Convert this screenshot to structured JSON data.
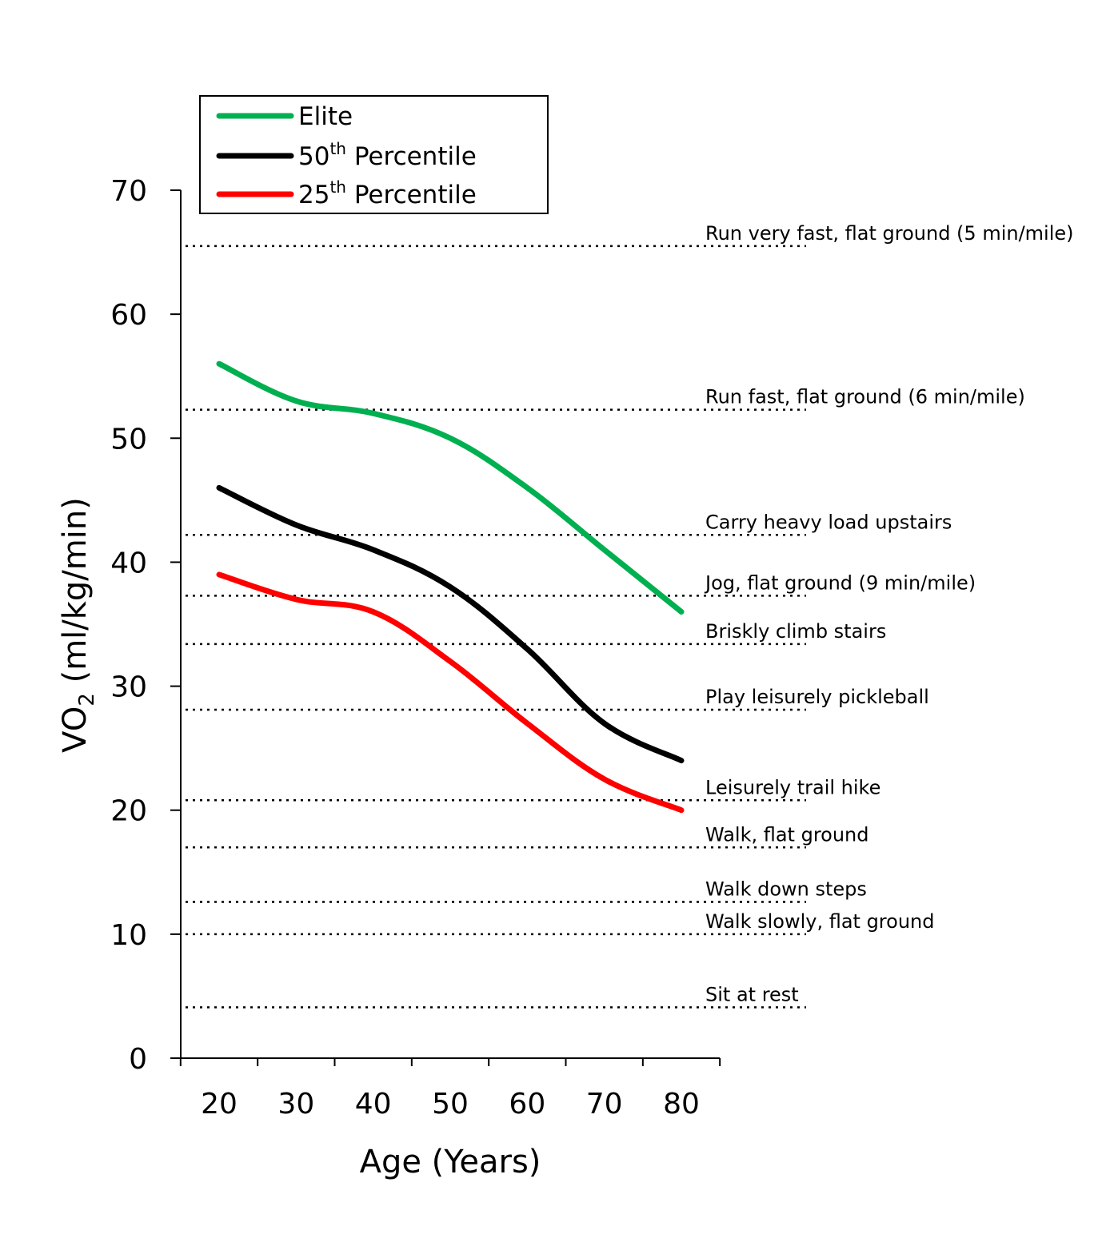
{
  "chart_data": {
    "type": "line",
    "xlabel": "Age (Years)",
    "ylabel_main": "VO",
    "ylabel_sub": "2",
    "ylabel_rest": " (ml/kg/min)",
    "x": [
      20,
      30,
      40,
      50,
      60,
      70,
      80
    ],
    "xticks": [
      "20",
      "30",
      "40",
      "50",
      "60",
      "70",
      "80"
    ],
    "xlim": [
      15,
      85
    ],
    "ylim": [
      0,
      70
    ],
    "yticks": [
      "0",
      "10",
      "20",
      "30",
      "40",
      "50",
      "60",
      "70"
    ],
    "grid": false,
    "legend_position": "top-left",
    "series": [
      {
        "name": "Elite",
        "legend_main": "Elite",
        "legend_sup": "",
        "legend_rest": "",
        "color": "#00b050",
        "values": [
          56,
          53,
          52,
          50,
          46,
          41,
          36
        ]
      },
      {
        "name": "50th Percentile",
        "legend_main": "50",
        "legend_sup": "th",
        "legend_rest": " Percentile",
        "color": "#000000",
        "values": [
          46,
          43,
          41,
          38,
          33,
          27,
          24
        ]
      },
      {
        "name": "25th Percentile",
        "legend_main": "25",
        "legend_sup": "th",
        "legend_rest": " Percentile",
        "color": "#ff0000",
        "values": [
          39,
          37,
          36,
          32,
          27,
          22.5,
          20
        ]
      }
    ],
    "reference_lines": [
      {
        "value": 65.5,
        "label": "Run very fast, flat ground (5 min/mile)"
      },
      {
        "value": 52.3,
        "label": "Run fast, flat ground (6 min/mile)"
      },
      {
        "value": 42.2,
        "label": "Carry heavy load upstairs"
      },
      {
        "value": 37.3,
        "label": "Jog, flat ground (9 min/mile)"
      },
      {
        "value": 33.4,
        "label": "Briskly climb stairs"
      },
      {
        "value": 28.1,
        "label": "Play leisurely pickleball"
      },
      {
        "value": 20.8,
        "label": "Leisurely trail hike"
      },
      {
        "value": 17.0,
        "label": "Walk, flat ground"
      },
      {
        "value": 12.6,
        "label": "Walk down steps"
      },
      {
        "value": 10.0,
        "label": "Walk slowly, flat ground"
      },
      {
        "value": 4.1,
        "label": "Sit at rest"
      }
    ]
  }
}
